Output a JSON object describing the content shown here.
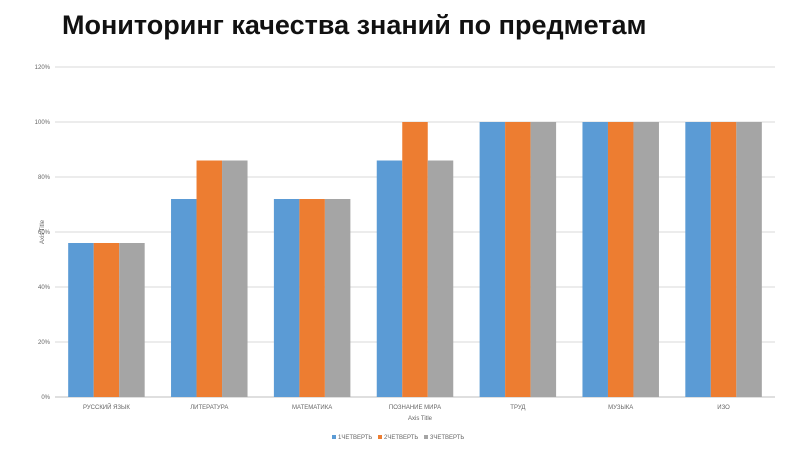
{
  "title": "Мониторинг качества знаний по предметам",
  "chart_data": {
    "type": "bar",
    "title": "Мониторинг качества знаний по предметам",
    "categories": [
      "РУССКИЙ ЯЗЫК",
      "ЛИТЕРАТУРА",
      "МАТЕМАТИКА",
      "ПОЗНАНИЕ МИРА",
      "ТРУД",
      "МУЗЫКА",
      "ИЗО"
    ],
    "series": [
      {
        "name": "1ЧЕТВЕРТЬ",
        "color": "#5b9bd5",
        "values": [
          56,
          72,
          72,
          86,
          100,
          100,
          100
        ]
      },
      {
        "name": "2ЧЕТВЕРТЬ",
        "color": "#ed7d31",
        "values": [
          56,
          86,
          72,
          100,
          100,
          100,
          100
        ]
      },
      {
        "name": "3ЧЕТВЕРТЬ",
        "color": "#a5a5a5",
        "values": [
          56,
          86,
          72,
          86,
          100,
          100,
          100
        ]
      }
    ],
    "yticks": [
      "0%",
      "20%",
      "40%",
      "60%",
      "80%",
      "100%",
      "120%"
    ],
    "ylim": [
      0,
      120
    ],
    "xlabel": "Axis Title",
    "ylabel": "Axis Title",
    "grid": true,
    "legend": "bottom"
  }
}
